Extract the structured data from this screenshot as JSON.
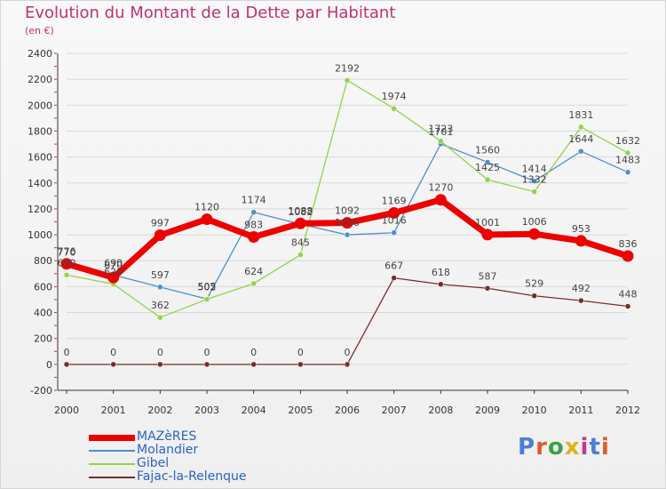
{
  "title": "Evolution du Montant de la Dette par Habitant",
  "subtitle": "(en €)",
  "logo": {
    "text": "Proxiti",
    "colors": [
      "#4a7fd6",
      "#e05b2a",
      "#3aa342",
      "#e3b21d",
      "#c03b8f",
      "#4a7fd6",
      "#e05b2a"
    ]
  },
  "colors": {
    "title": "#c0316f",
    "grid": "#d8d8d8",
    "axis": "#333333"
  },
  "chart_data": {
    "type": "line",
    "title": "Evolution du Montant de la Dette par Habitant",
    "subtitle": "(en €)",
    "x": [
      "2000",
      "2001",
      "2002",
      "2003",
      "2004",
      "2005",
      "2006",
      "2007",
      "2008",
      "2009",
      "2010",
      "2011",
      "2012"
    ],
    "ylim": [
      -200,
      2400
    ],
    "yticks": [
      -200,
      0,
      200,
      400,
      600,
      800,
      1000,
      1200,
      1400,
      1600,
      1800,
      2000,
      2200,
      2400
    ],
    "grid": true,
    "legend": "bottom-left",
    "series": [
      {
        "name": "MAZèRES",
        "color": "#ee0000",
        "width": 7,
        "values": [
          776,
          670,
          997,
          1120,
          983,
          1088,
          1092,
          1169,
          1270,
          1001,
          1006,
          953,
          836
        ],
        "labels": [
          "776",
          "670",
          "997",
          "1120",
          "983",
          "1088",
          "1092",
          "1169",
          "1270",
          "1001",
          "1006",
          "953",
          "836"
        ]
      },
      {
        "name": "Molandier",
        "color": "#4d8fcc",
        "width": 1.3,
        "values": [
          770,
          690,
          597,
          505,
          1174,
          1082,
          1000,
          1016,
          1701,
          1560,
          1414,
          1644,
          1483
        ],
        "labels": [
          "770",
          "690",
          "597",
          "505",
          "1174",
          "1082",
          "1000",
          "1016",
          "1701",
          "1560",
          "1414",
          "1644",
          "1483"
        ]
      },
      {
        "name": "Gibel",
        "color": "#8fd44a",
        "width": 1.3,
        "values": [
          690,
          620,
          362,
          502,
          624,
          845,
          2192,
          1974,
          1723,
          1425,
          1332,
          1831,
          1632
        ],
        "labels": [
          "690",
          "620",
          "362",
          "502",
          "624",
          "845",
          "2192",
          "1974",
          "1723",
          "1425",
          "1332",
          "1831",
          "1632"
        ]
      },
      {
        "name": "Fajac-la-Relenque",
        "color": "#7a2c2c",
        "width": 1.3,
        "values": [
          0,
          0,
          0,
          0,
          0,
          0,
          0,
          667,
          618,
          587,
          529,
          492,
          448
        ],
        "labels": [
          "0",
          "0",
          "0",
          "0",
          "0",
          "0",
          "0",
          "667",
          "618",
          "587",
          "529",
          "492",
          "448"
        ]
      }
    ]
  }
}
